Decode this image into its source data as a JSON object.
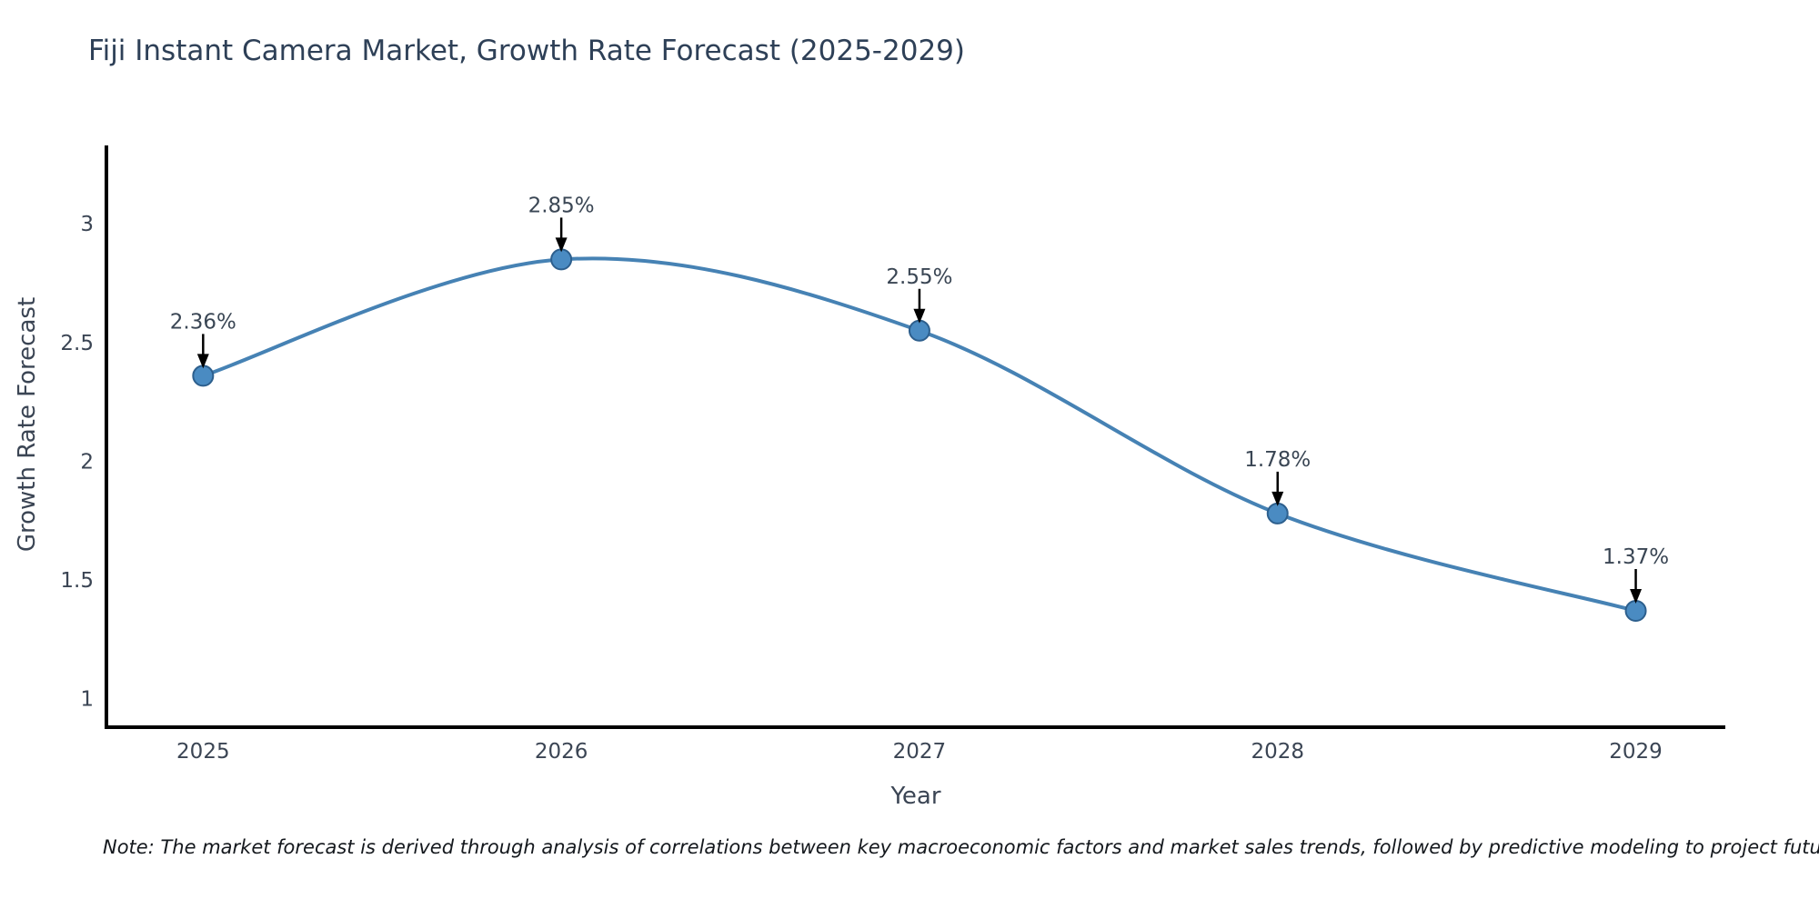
{
  "page": {
    "note": "Note: The market forecast is derived through analysis of correlations between key macroeconomic factors and market sales trends, followed by predictive modeling to project future sales"
  },
  "chart_data": {
    "type": "line",
    "title": "Fiji Instant Camera Market, Growth Rate Forecast (2025-2029)",
    "xlabel": "Year",
    "ylabel": "Growth Rate Forecast",
    "x": [
      2025,
      2026,
      2027,
      2028,
      2029
    ],
    "values": [
      2.36,
      2.85,
      2.55,
      1.78,
      1.37
    ],
    "point_labels": [
      "2.36%",
      "2.85%",
      "2.55%",
      "1.78%",
      "1.37%"
    ],
    "xtick_labels": [
      "2025",
      "2026",
      "2027",
      "2028",
      "2029"
    ],
    "yticks": [
      1,
      1.5,
      2,
      2.5,
      3
    ],
    "ytick_labels": [
      "1",
      "1.5",
      "2",
      "2.5",
      "3"
    ],
    "xlim": [
      2024.73,
      2029.25
    ],
    "ylim": [
      0.88,
      3.33
    ],
    "grid": false,
    "legend": "none",
    "curve_style": "smooth-spline",
    "line_color": "#4682b4",
    "marker_color": "#4a8bc2",
    "marker_edge_color": "#2d5f8d",
    "annotation_arrow_color": "#000000",
    "axis_color": "#000000"
  }
}
